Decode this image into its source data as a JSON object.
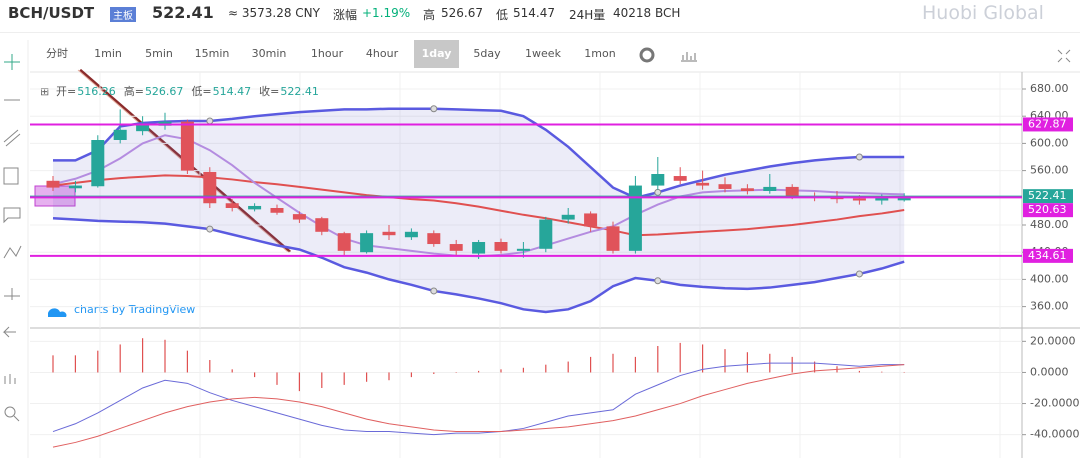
{
  "header": {
    "pair": "BCH/USDT",
    "badge": "主板",
    "price": "522.41",
    "cny": "≈ 3573.28 CNY",
    "change_label": "涨幅",
    "change": "+1.19%",
    "high_label": "高",
    "high": "526.67",
    "low_label": "低",
    "low": "514.47",
    "vol_label": "24H量",
    "vol": "40218 BCH",
    "logo": "Huobi Global"
  },
  "toolbar": {
    "intervals": [
      "分时",
      "1min",
      "5min",
      "15min",
      "30min",
      "1hour",
      "4hour",
      "1day",
      "5day",
      "1week",
      "1mon"
    ],
    "active": 7
  },
  "watermark": "charts by TradingView",
  "chart_data": [
    {
      "type": "candlestick",
      "ohlc": [
        {
          "label": "开=",
          "value": 516.26
        },
        {
          "label": "高=",
          "value": 526.67
        },
        {
          "label": "低=",
          "value": 514.47
        },
        {
          "label": "收=",
          "value": 522.41
        }
      ],
      "ylim": [
        330,
        705
      ],
      "yticks": [
        {
          "value": 680,
          "label": "680.00"
        },
        {
          "value": 640,
          "label": "640.00"
        },
        {
          "value": 600,
          "label": "600.00"
        },
        {
          "value": 560,
          "label": "560.00"
        },
        {
          "value": 480,
          "label": "480.00"
        },
        {
          "value": 440,
          "label": "440.00"
        },
        {
          "value": 400,
          "label": "400.00"
        },
        {
          "value": 360,
          "label": "360.00"
        }
      ],
      "up_color": "#26a69a",
      "down_color": "#e0535a",
      "candles": [
        {
          "open": 545,
          "high": 552,
          "low": 530,
          "close": 535
        },
        {
          "open": 534,
          "high": 545,
          "low": 528,
          "close": 538
        },
        {
          "open": 537,
          "high": 612,
          "low": 535,
          "close": 605
        },
        {
          "open": 605,
          "high": 650,
          "low": 600,
          "close": 620
        },
        {
          "open": 618,
          "high": 640,
          "low": 612,
          "close": 628
        },
        {
          "open": 626,
          "high": 645,
          "low": 620,
          "close": 632
        },
        {
          "open": 632,
          "high": 635,
          "low": 555,
          "close": 560
        },
        {
          "open": 558,
          "high": 565,
          "low": 505,
          "close": 512
        },
        {
          "open": 512,
          "high": 518,
          "low": 500,
          "close": 505
        },
        {
          "open": 503,
          "high": 512,
          "low": 500,
          "close": 508
        },
        {
          "open": 505,
          "high": 510,
          "low": 495,
          "close": 498
        },
        {
          "open": 496,
          "high": 500,
          "low": 483,
          "close": 488
        },
        {
          "open": 490,
          "high": 492,
          "low": 465,
          "close": 470
        },
        {
          "open": 468,
          "high": 470,
          "low": 435,
          "close": 442
        },
        {
          "open": 440,
          "high": 472,
          "low": 438,
          "close": 468
        },
        {
          "open": 470,
          "high": 480,
          "low": 458,
          "close": 465
        },
        {
          "open": 462,
          "high": 475,
          "low": 458,
          "close": 470
        },
        {
          "open": 468,
          "high": 472,
          "low": 448,
          "close": 452
        },
        {
          "open": 452,
          "high": 458,
          "low": 436,
          "close": 442
        },
        {
          "open": 438,
          "high": 458,
          "low": 430,
          "close": 455
        },
        {
          "open": 455,
          "high": 460,
          "low": 438,
          "close": 442
        },
        {
          "open": 442,
          "high": 455,
          "low": 432,
          "close": 445
        },
        {
          "open": 445,
          "high": 492,
          "low": 440,
          "close": 488
        },
        {
          "open": 488,
          "high": 505,
          "low": 482,
          "close": 495
        },
        {
          "open": 497,
          "high": 500,
          "low": 470,
          "close": 478
        },
        {
          "open": 478,
          "high": 485,
          "low": 438,
          "close": 442
        },
        {
          "open": 442,
          "high": 552,
          "low": 438,
          "close": 538
        },
        {
          "open": 538,
          "high": 580,
          "low": 532,
          "close": 555
        },
        {
          "open": 552,
          "high": 565,
          "low": 540,
          "close": 545
        },
        {
          "open": 542,
          "high": 560,
          "low": 532,
          "close": 538
        },
        {
          "open": 540,
          "high": 550,
          "low": 528,
          "close": 533
        },
        {
          "open": 534,
          "high": 540,
          "low": 525,
          "close": 530
        },
        {
          "open": 530,
          "high": 555,
          "low": 526,
          "close": 536
        },
        {
          "open": 536,
          "high": 540,
          "low": 518,
          "close": 522
        },
        {
          "open": 522,
          "high": 528,
          "low": 515,
          "close": 520
        },
        {
          "open": 520,
          "high": 530,
          "low": 512,
          "close": 518
        },
        {
          "open": 519,
          "high": 524,
          "low": 510,
          "close": 516
        },
        {
          "open": 516,
          "high": 525,
          "low": 510,
          "close": 520
        },
        {
          "open": 516.26,
          "high": 526.67,
          "low": 514.47,
          "close": 522.41
        }
      ],
      "series": [
        {
          "color": "#5a5ae0",
          "values": [
            575,
            575,
            590,
            625,
            630,
            632,
            633,
            633,
            636,
            640,
            643,
            646,
            648,
            650,
            650,
            651,
            651,
            651,
            650,
            649,
            648,
            640,
            620,
            595,
            565,
            535,
            520,
            528,
            538,
            546,
            554,
            560,
            566,
            571,
            575,
            578,
            580,
            580,
            580
          ]
        },
        {
          "color": "#5a5ae0",
          "values": [
            490,
            488,
            486,
            485,
            484,
            482,
            478,
            474,
            466,
            458,
            450,
            444,
            432,
            418,
            410,
            400,
            392,
            383,
            378,
            372,
            365,
            356,
            352,
            356,
            368,
            390,
            402,
            398,
            392,
            389,
            387,
            386,
            388,
            392,
            396,
            402,
            408,
            416,
            426
          ]
        },
        {
          "color": "#e05050",
          "values": [
            538,
            542,
            546,
            549,
            551,
            553,
            552,
            550,
            547,
            543,
            540,
            536,
            532,
            528,
            524,
            521,
            518,
            516,
            512,
            507,
            501,
            495,
            490,
            484,
            478,
            472,
            465,
            466,
            468,
            470,
            472,
            474,
            477,
            480,
            484,
            488,
            493,
            497,
            502
          ]
        },
        {
          "color": "#b48ce0",
          "values": [
            540,
            548,
            560,
            578,
            600,
            612,
            606,
            590,
            568,
            542,
            520,
            498,
            478,
            460,
            450,
            446,
            442,
            438,
            435,
            434,
            436,
            440,
            450,
            460,
            470,
            478,
            495,
            510,
            522,
            528,
            530,
            531,
            532,
            531,
            530,
            528,
            527,
            526,
            525
          ]
        }
      ],
      "price_lines": [
        {
          "value": 627.87,
          "color": "#e020e0"
        },
        {
          "value": 522.41,
          "color": "#26a69a"
        },
        {
          "value": 520.63,
          "color": "#e020e0"
        },
        {
          "value": 434.61,
          "color": "#e020e0"
        }
      ]
    },
    {
      "type": "macd",
      "ylim": [
        -55,
        26
      ],
      "yticks": [
        {
          "value": 20,
          "label": "20.0000"
        },
        {
          "value": 0,
          "label": "0.0000"
        },
        {
          "value": -20,
          "label": "-20.0000"
        },
        {
          "value": -40,
          "label": "-40.0000"
        }
      ],
      "histogram": {
        "color": "#e05050",
        "values": [
          11,
          11,
          14,
          18,
          22,
          21,
          14,
          8,
          2,
          -3,
          -8,
          -12,
          -10,
          -8,
          -6,
          -5,
          -3,
          -1,
          0,
          1,
          2,
          3,
          5,
          7,
          10,
          12,
          10,
          17,
          19,
          18,
          15,
          13,
          12,
          10,
          7,
          4,
          1,
          0.5,
          0.3
        ]
      },
      "series": [
        {
          "color": "#6a6ad8",
          "values": [
            -38,
            -33,
            -26,
            -18,
            -10,
            -5,
            -7,
            -13,
            -18,
            -22,
            -26,
            -30,
            -34,
            -37,
            -38,
            -38,
            -39,
            -40,
            -39,
            -39,
            -38,
            -36,
            -32,
            -28,
            -26,
            -24,
            -14,
            -8,
            -2,
            2,
            4,
            5,
            6,
            6,
            6,
            5,
            4,
            5,
            5
          ]
        },
        {
          "color": "#e06060",
          "values": [
            -48,
            -45,
            -41,
            -36,
            -31,
            -26,
            -22,
            -19,
            -17,
            -16,
            -17,
            -19,
            -22,
            -26,
            -30,
            -33,
            -35,
            -37,
            -38,
            -38,
            -38,
            -37,
            -36,
            -35,
            -33,
            -31,
            -28,
            -24,
            -20,
            -15,
            -11,
            -7,
            -4,
            -1,
            1,
            2,
            3,
            4,
            5
          ]
        }
      ]
    }
  ]
}
